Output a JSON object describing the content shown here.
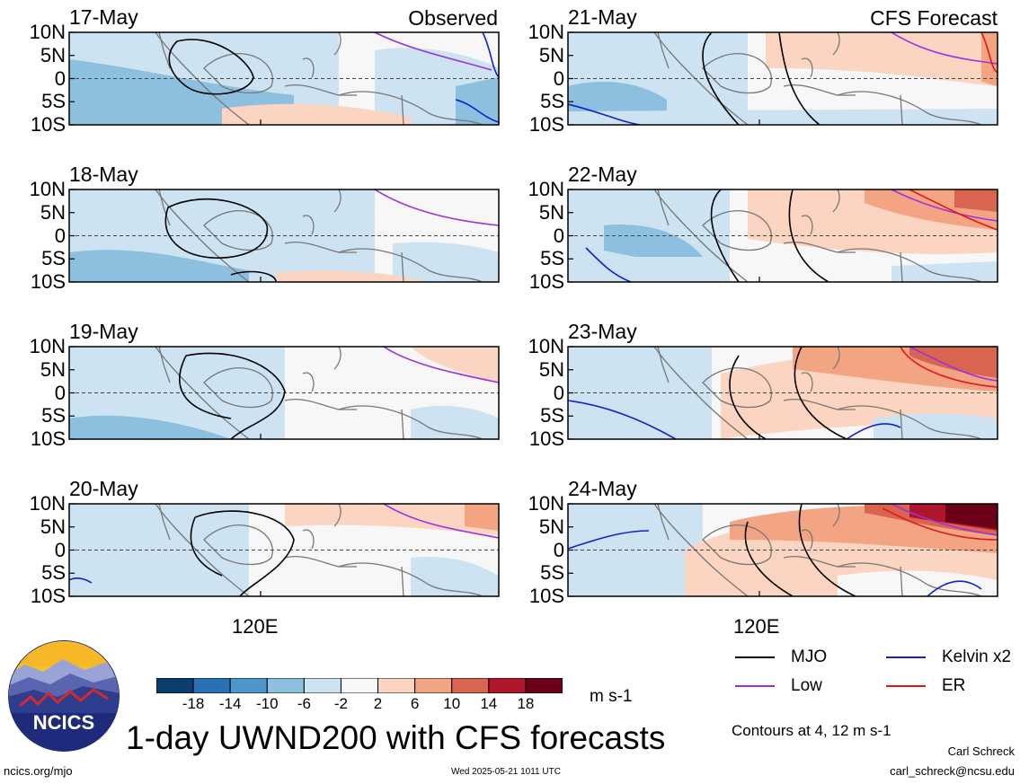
{
  "chart_data": {
    "type": "heatmap",
    "title": "1-day UWND200 with CFS forecasts",
    "variable": "UWND200",
    "units": "m s-1",
    "column_labels": [
      "Observed",
      "CFS Forecast"
    ],
    "y_ticks": [
      "10N",
      "5N",
      "0",
      "5S",
      "10S"
    ],
    "y_range": [
      -10,
      10
    ],
    "x_ticks": [
      "120E"
    ],
    "colorbar": {
      "levels": [
        -18,
        -14,
        -10,
        -6,
        -2,
        2,
        6,
        10,
        14,
        18
      ],
      "colors": [
        "#0b3d6e",
        "#2a70b5",
        "#4c97ca",
        "#8cc0de",
        "#cde3f1",
        "#f7f7f7",
        "#fcd5c2",
        "#f3a583",
        "#d96450",
        "#b0162b",
        "#6b0018"
      ]
    },
    "contour_note": "Contours at 4, 12 m s-1",
    "legend": [
      {
        "label": "MJO",
        "color": "#000000"
      },
      {
        "label": "Kelvin x2",
        "color": "#1020d0"
      },
      {
        "label": "Low",
        "color": "#9a30e0"
      },
      {
        "label": "ER",
        "color": "#e01818"
      }
    ],
    "panels": [
      {
        "date": "17-May",
        "column": "Observed"
      },
      {
        "date": "18-May",
        "column": "Observed"
      },
      {
        "date": "19-May",
        "column": "Observed"
      },
      {
        "date": "20-May",
        "column": "Observed"
      },
      {
        "date": "21-May",
        "column": "CFS Forecast"
      },
      {
        "date": "22-May",
        "column": "CFS Forecast"
      },
      {
        "date": "23-May",
        "column": "CFS Forecast"
      },
      {
        "date": "24-May",
        "column": "CFS Forecast"
      }
    ]
  },
  "footer": {
    "logo_text": "NCICS",
    "url": "ncics.org/mjo",
    "timestamp": "Wed 2025-05-21 1011 UTC",
    "author": "Carl Schreck",
    "email": "carl_schreck@ncsu.edu"
  }
}
